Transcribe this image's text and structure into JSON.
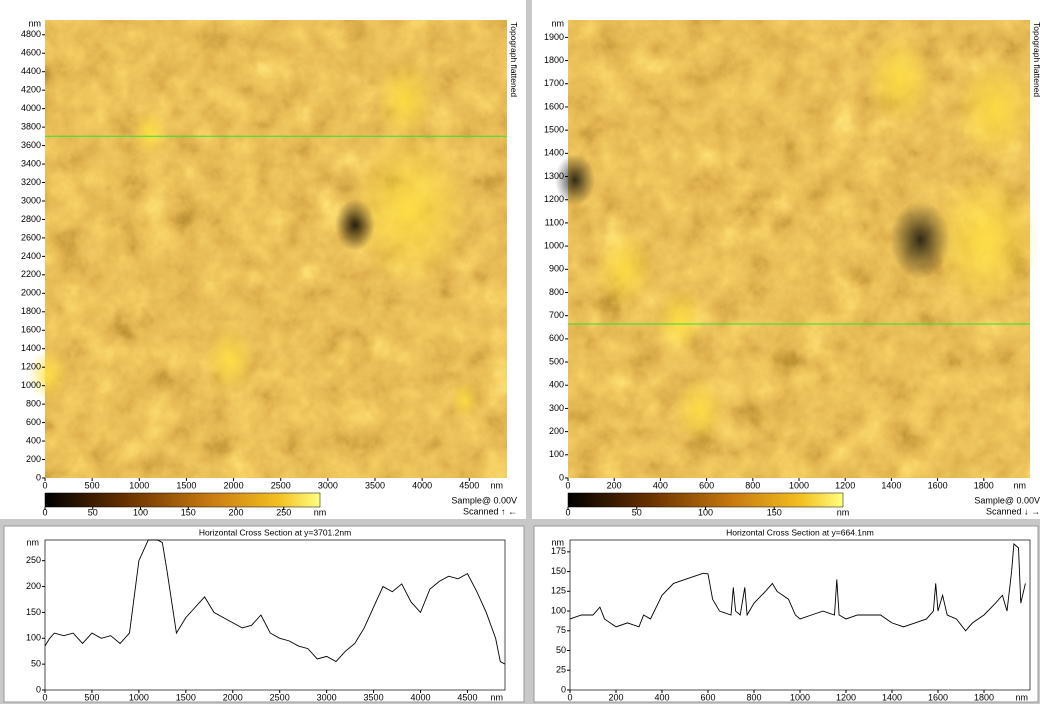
{
  "panels": [
    {
      "side_label": "Topograph flattened",
      "image": {
        "y_unit": "nm",
        "x_unit": "nm",
        "xlim": [
          0,
          4900
        ],
        "ylim": [
          0,
          4960
        ],
        "xticks": [
          0,
          500,
          1000,
          1500,
          2000,
          2500,
          3000,
          3500,
          4000,
          4500
        ],
        "yticks": [
          0,
          200,
          400,
          600,
          800,
          1000,
          1200,
          1400,
          1600,
          1800,
          2000,
          2200,
          2400,
          2600,
          2800,
          3000,
          3200,
          3400,
          3600,
          3800,
          4000,
          4200,
          4400,
          4600,
          4800
        ]
      },
      "colorbar": {
        "unit": "nm",
        "lim": [
          0,
          288
        ],
        "ticks": [
          0,
          50,
          100,
          150,
          200,
          250
        ]
      },
      "sample": "Sample@ 0.00V",
      "scanned": "Scanned ↑ ←",
      "cross_section": {
        "title": "Horizontal Cross Section at y=3701.2nm",
        "y_unit": "nm",
        "x_unit": "nm",
        "xlim": [
          0,
          4900
        ],
        "ylim": [
          0,
          290
        ],
        "xticks": [
          0,
          500,
          1000,
          1500,
          2000,
          2500,
          3000,
          3500,
          4000,
          4500
        ],
        "yticks": [
          0,
          50,
          100,
          150,
          200,
          250
        ],
        "x": [
          0,
          50,
          100,
          200,
          300,
          400,
          500,
          600,
          700,
          800,
          900,
          950,
          1000,
          1100,
          1200,
          1250,
          1300,
          1400,
          1500,
          1600,
          1700,
          1800,
          1900,
          2000,
          2100,
          2200,
          2300,
          2400,
          2500,
          2600,
          2700,
          2800,
          2900,
          3000,
          3100,
          3200,
          3300,
          3400,
          3500,
          3600,
          3700,
          3800,
          3900,
          4000,
          4100,
          4200,
          4300,
          4400,
          4500,
          4600,
          4700,
          4800,
          4850,
          4900
        ],
        "values": [
          85,
          100,
          110,
          105,
          110,
          90,
          110,
          100,
          105,
          90,
          110,
          180,
          250,
          290,
          290,
          285,
          230,
          110,
          140,
          160,
          180,
          150,
          140,
          130,
          120,
          125,
          145,
          110,
          100,
          95,
          85,
          80,
          60,
          65,
          55,
          75,
          90,
          120,
          160,
          200,
          190,
          205,
          170,
          150,
          195,
          210,
          220,
          215,
          225,
          190,
          150,
          100,
          55,
          50
        ]
      }
    },
    {
      "side_label": "Topograph flattened",
      "image": {
        "y_unit": "nm",
        "x_unit": "nm",
        "xlim": [
          0,
          2000
        ],
        "ylim": [
          0,
          1975
        ],
        "xticks": [
          0,
          200,
          400,
          600,
          800,
          1000,
          1200,
          1400,
          1600,
          1800
        ],
        "yticks": [
          0,
          100,
          200,
          300,
          400,
          500,
          600,
          700,
          800,
          900,
          1000,
          1100,
          1200,
          1300,
          1400,
          1500,
          1600,
          1700,
          1800,
          1900
        ]
      },
      "colorbar": {
        "unit": "nm",
        "lim": [
          0,
          200
        ],
        "ticks": [
          0,
          50,
          100,
          150
        ]
      },
      "sample": "Sample@ 0.00V",
      "scanned": "Scanned ↓ →",
      "cross_section": {
        "title": "Horizontal Cross Section at y=664.1nm",
        "y_unit": "nm",
        "x_unit": "nm",
        "xlim": [
          0,
          2000
        ],
        "ylim": [
          0,
          190
        ],
        "xticks": [
          0,
          200,
          400,
          600,
          800,
          1000,
          1200,
          1400,
          1600,
          1800
        ],
        "yticks": [
          0,
          25,
          50,
          75,
          100,
          125,
          150,
          175
        ],
        "x": [
          0,
          50,
          100,
          130,
          150,
          200,
          250,
          300,
          320,
          350,
          400,
          450,
          500,
          550,
          580,
          600,
          620,
          650,
          700,
          710,
          720,
          740,
          760,
          770,
          800,
          850,
          880,
          900,
          950,
          980,
          1000,
          1050,
          1100,
          1150,
          1160,
          1170,
          1200,
          1250,
          1300,
          1350,
          1400,
          1450,
          1500,
          1550,
          1580,
          1590,
          1600,
          1620,
          1640,
          1680,
          1720,
          1750,
          1800,
          1850,
          1880,
          1900,
          1920,
          1930,
          1950,
          1960,
          1980
        ],
        "values": [
          90,
          95,
          95,
          105,
          90,
          80,
          85,
          80,
          95,
          90,
          120,
          135,
          140,
          145,
          148,
          147,
          115,
          100,
          95,
          130,
          100,
          95,
          130,
          95,
          110,
          125,
          135,
          125,
          115,
          95,
          90,
          95,
          100,
          95,
          140,
          95,
          90,
          95,
          95,
          95,
          85,
          80,
          85,
          90,
          100,
          135,
          100,
          120,
          95,
          90,
          75,
          85,
          95,
          110,
          120,
          100,
          150,
          185,
          180,
          110,
          135
        ]
      }
    }
  ]
}
